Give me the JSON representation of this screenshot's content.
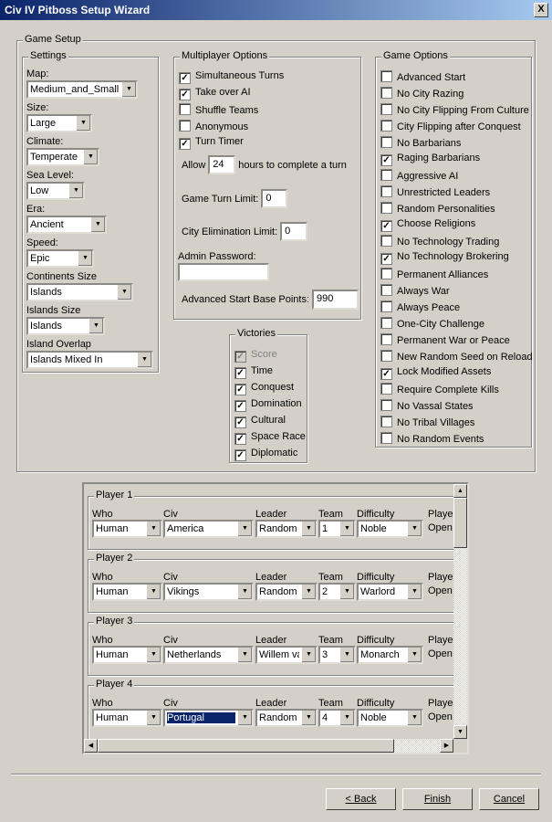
{
  "window": {
    "title": "Civ IV Pitboss Setup Wizard",
    "close": "X"
  },
  "game_setup": {
    "label": "Game Setup"
  },
  "settings": {
    "label": "Settings",
    "fields": [
      {
        "label": "Map:",
        "value": "Medium_and_Small"
      },
      {
        "label": "Size:",
        "value": "Large"
      },
      {
        "label": "Climate:",
        "value": "Temperate"
      },
      {
        "label": "Sea Level:",
        "value": "Low"
      },
      {
        "label": "Era:",
        "value": "Ancient"
      },
      {
        "label": "Speed:",
        "value": "Epic"
      },
      {
        "label": "Continents Size",
        "value": "Islands"
      },
      {
        "label": "Islands Size",
        "value": "Islands"
      },
      {
        "label": "Island Overlap",
        "value": "Islands Mixed In"
      }
    ]
  },
  "multiplayer": {
    "label": "Multiplayer Options",
    "checks": [
      {
        "label": "Simultaneous Turns",
        "checked": true
      },
      {
        "label": "Take over AI",
        "checked": true
      },
      {
        "label": "Shuffle Teams",
        "checked": false
      },
      {
        "label": "Anonymous",
        "checked": false
      },
      {
        "label": "Turn Timer",
        "checked": true
      }
    ],
    "allow_label": "Allow",
    "hours": "24",
    "hours_label": "hours to complete a turn",
    "turn_limit_label": "Game Turn Limit:",
    "turn_limit": "0",
    "city_elim_label": "City Elimination Limit:",
    "city_elim": "0",
    "admin_password_label": "Admin Password:",
    "admin_password": "",
    "adv_start_label": "Advanced Start Base Points:",
    "adv_start": "990"
  },
  "victories": {
    "label": "Victories",
    "items": [
      {
        "label": "Score",
        "checked": true,
        "disabled": true
      },
      {
        "label": "Time",
        "checked": true
      },
      {
        "label": "Conquest",
        "checked": true
      },
      {
        "label": "Domination",
        "checked": true
      },
      {
        "label": "Cultural",
        "checked": true
      },
      {
        "label": "Space Race",
        "checked": true
      },
      {
        "label": "Diplomatic",
        "checked": true
      }
    ]
  },
  "game_options": {
    "label": "Game Options",
    "items": [
      {
        "label": "Advanced Start",
        "checked": false
      },
      {
        "label": "No City Razing",
        "checked": false
      },
      {
        "label": "No City Flipping From Culture",
        "checked": false
      },
      {
        "label": "City Flipping after Conquest",
        "checked": false
      },
      {
        "label": "No Barbarians",
        "checked": false
      },
      {
        "label": "Raging Barbarians",
        "checked": true
      },
      {
        "label": "Aggressive AI",
        "checked": false
      },
      {
        "label": "Unrestricted Leaders",
        "checked": false
      },
      {
        "label": "Random Personalities",
        "checked": false
      },
      {
        "label": "Choose Religions",
        "checked": true
      },
      {
        "label": "No Technology Trading",
        "checked": false
      },
      {
        "label": "No Technology Brokering",
        "checked": true
      },
      {
        "label": "Permanent Alliances",
        "checked": false
      },
      {
        "label": "Always War",
        "checked": false
      },
      {
        "label": "Always Peace",
        "checked": false
      },
      {
        "label": "One-City Challenge",
        "checked": false
      },
      {
        "label": "Permanent War or Peace",
        "checked": false
      },
      {
        "label": "New Random Seed on Reload",
        "checked": false
      },
      {
        "label": "Lock Modified Assets",
        "checked": true
      },
      {
        "label": "Require Complete Kills",
        "checked": false
      },
      {
        "label": "No Vassal States",
        "checked": false
      },
      {
        "label": "No Tribal Villages",
        "checked": false
      },
      {
        "label": "No Random Events",
        "checked": false
      }
    ]
  },
  "players": {
    "columns": [
      "Who",
      "Civ",
      "Leader",
      "Team",
      "Difficulty",
      "Player"
    ],
    "list": [
      {
        "label": "Player 1",
        "who": "Human",
        "civ": "America",
        "leader": "Random",
        "team": "1",
        "difficulty": "Noble",
        "status": "Open"
      },
      {
        "label": "Player 2",
        "who": "Human",
        "civ": "Vikings",
        "leader": "Random",
        "team": "2",
        "difficulty": "Warlord",
        "status": "Open"
      },
      {
        "label": "Player 3",
        "who": "Human",
        "civ": "Netherlands",
        "leader": "Willem van Oranje",
        "team": "3",
        "difficulty": "Monarch",
        "status": "Open"
      },
      {
        "label": "Player 4",
        "who": "Human",
        "civ": "Portugal",
        "leader": "Random",
        "team": "4",
        "difficulty": "Noble",
        "status": "Open"
      }
    ]
  },
  "buttons": {
    "back": "< Back",
    "finish": "Finish",
    "cancel": "Cancel"
  }
}
